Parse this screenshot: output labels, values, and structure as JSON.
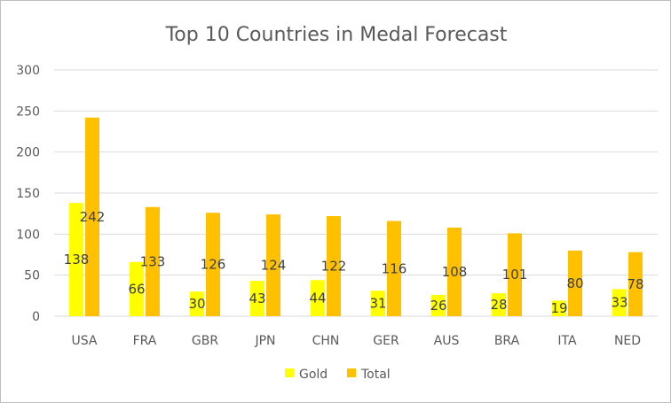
{
  "chart_data": {
    "type": "bar",
    "title": "Top 10 Countries in Medal Forecast",
    "xlabel": "",
    "ylabel": "",
    "ylim": [
      0,
      300
    ],
    "yticks": [
      0,
      50,
      100,
      150,
      200,
      250,
      300
    ],
    "grid": true,
    "legend_position": "bottom",
    "categories": [
      "USA",
      "FRA",
      "GBR",
      "JPN",
      "CHN",
      "GER",
      "AUS",
      "BRA",
      "ITA",
      "NED"
    ],
    "series": [
      {
        "name": "Gold",
        "color": "#ffff00",
        "values": [
          138,
          66,
          30,
          43,
          44,
          31,
          26,
          28,
          19,
          33
        ],
        "labels": [
          "138",
          "66",
          "30",
          "43",
          "44",
          "31",
          "26",
          "28",
          "19",
          "33"
        ]
      },
      {
        "name": "Total",
        "color": "#ffc000",
        "values": [
          242,
          133,
          126,
          124,
          122,
          116,
          108,
          101,
          80,
          78
        ],
        "labels": [
          "242",
          "133",
          "126",
          "124",
          "122",
          "116",
          "108",
          "101",
          "80",
          "78"
        ]
      }
    ]
  }
}
